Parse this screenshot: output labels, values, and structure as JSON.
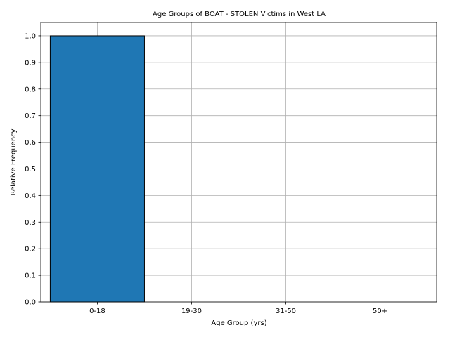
{
  "chart_data": {
    "type": "bar",
    "title": "Age Groups of BOAT - STOLEN Victims in West LA",
    "xlabel": "Age Group (yrs)",
    "ylabel": "Relative Frequency",
    "categories": [
      "0-18",
      "19-30",
      "31-50",
      "50+"
    ],
    "values": [
      1.0,
      0.0,
      0.0,
      0.0
    ],
    "ylim": [
      0,
      1.05
    ],
    "yticks": [
      "0.0",
      "0.1",
      "0.2",
      "0.3",
      "0.4",
      "0.5",
      "0.6",
      "0.7",
      "0.8",
      "0.9",
      "1.0"
    ],
    "grid": true,
    "legend": "none",
    "colors": {
      "bar": "#1f77b4",
      "bar_edge": "#000000",
      "grid": "#b0b0b0"
    }
  }
}
